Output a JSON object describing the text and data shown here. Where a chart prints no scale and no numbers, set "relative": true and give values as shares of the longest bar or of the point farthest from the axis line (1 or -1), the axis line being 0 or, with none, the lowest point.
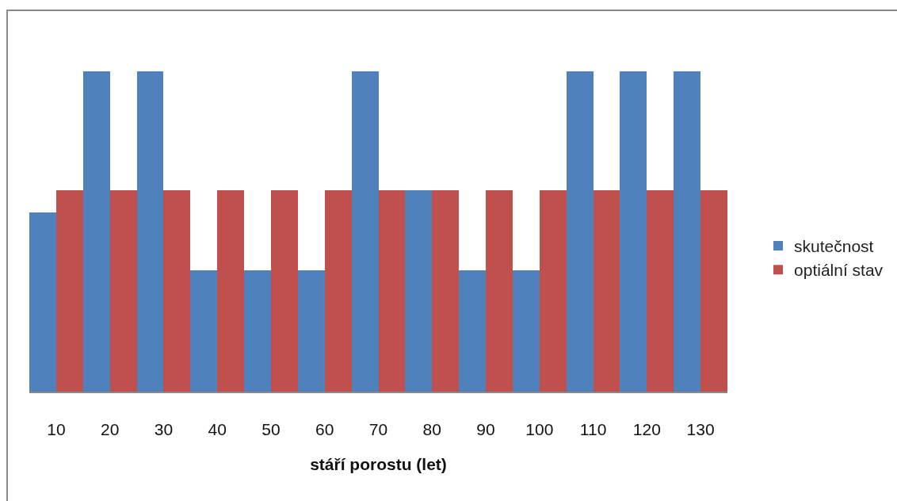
{
  "chart_data": {
    "type": "bar",
    "relative": true,
    "xlabel": "stáří porostu (let)",
    "categories": [
      "10",
      "20",
      "30",
      "40",
      "50",
      "60",
      "70",
      "80",
      "90",
      "100",
      "110",
      "120",
      "130"
    ],
    "series": [
      {
        "name": "skutečnost",
        "color": "#4f81bd",
        "values": [
          0.56,
          1,
          1,
          0.38,
          0.38,
          0.38,
          1,
          0.63,
          0.38,
          0.38,
          1,
          1,
          1
        ]
      },
      {
        "name": "optiální stav",
        "color": "#c0504d",
        "values": [
          0.63,
          0.63,
          0.63,
          0.63,
          0.63,
          0.63,
          0.63,
          0.63,
          0.63,
          0.63,
          0.63,
          0.63,
          0.63
        ]
      }
    ],
    "legend": "right"
  }
}
